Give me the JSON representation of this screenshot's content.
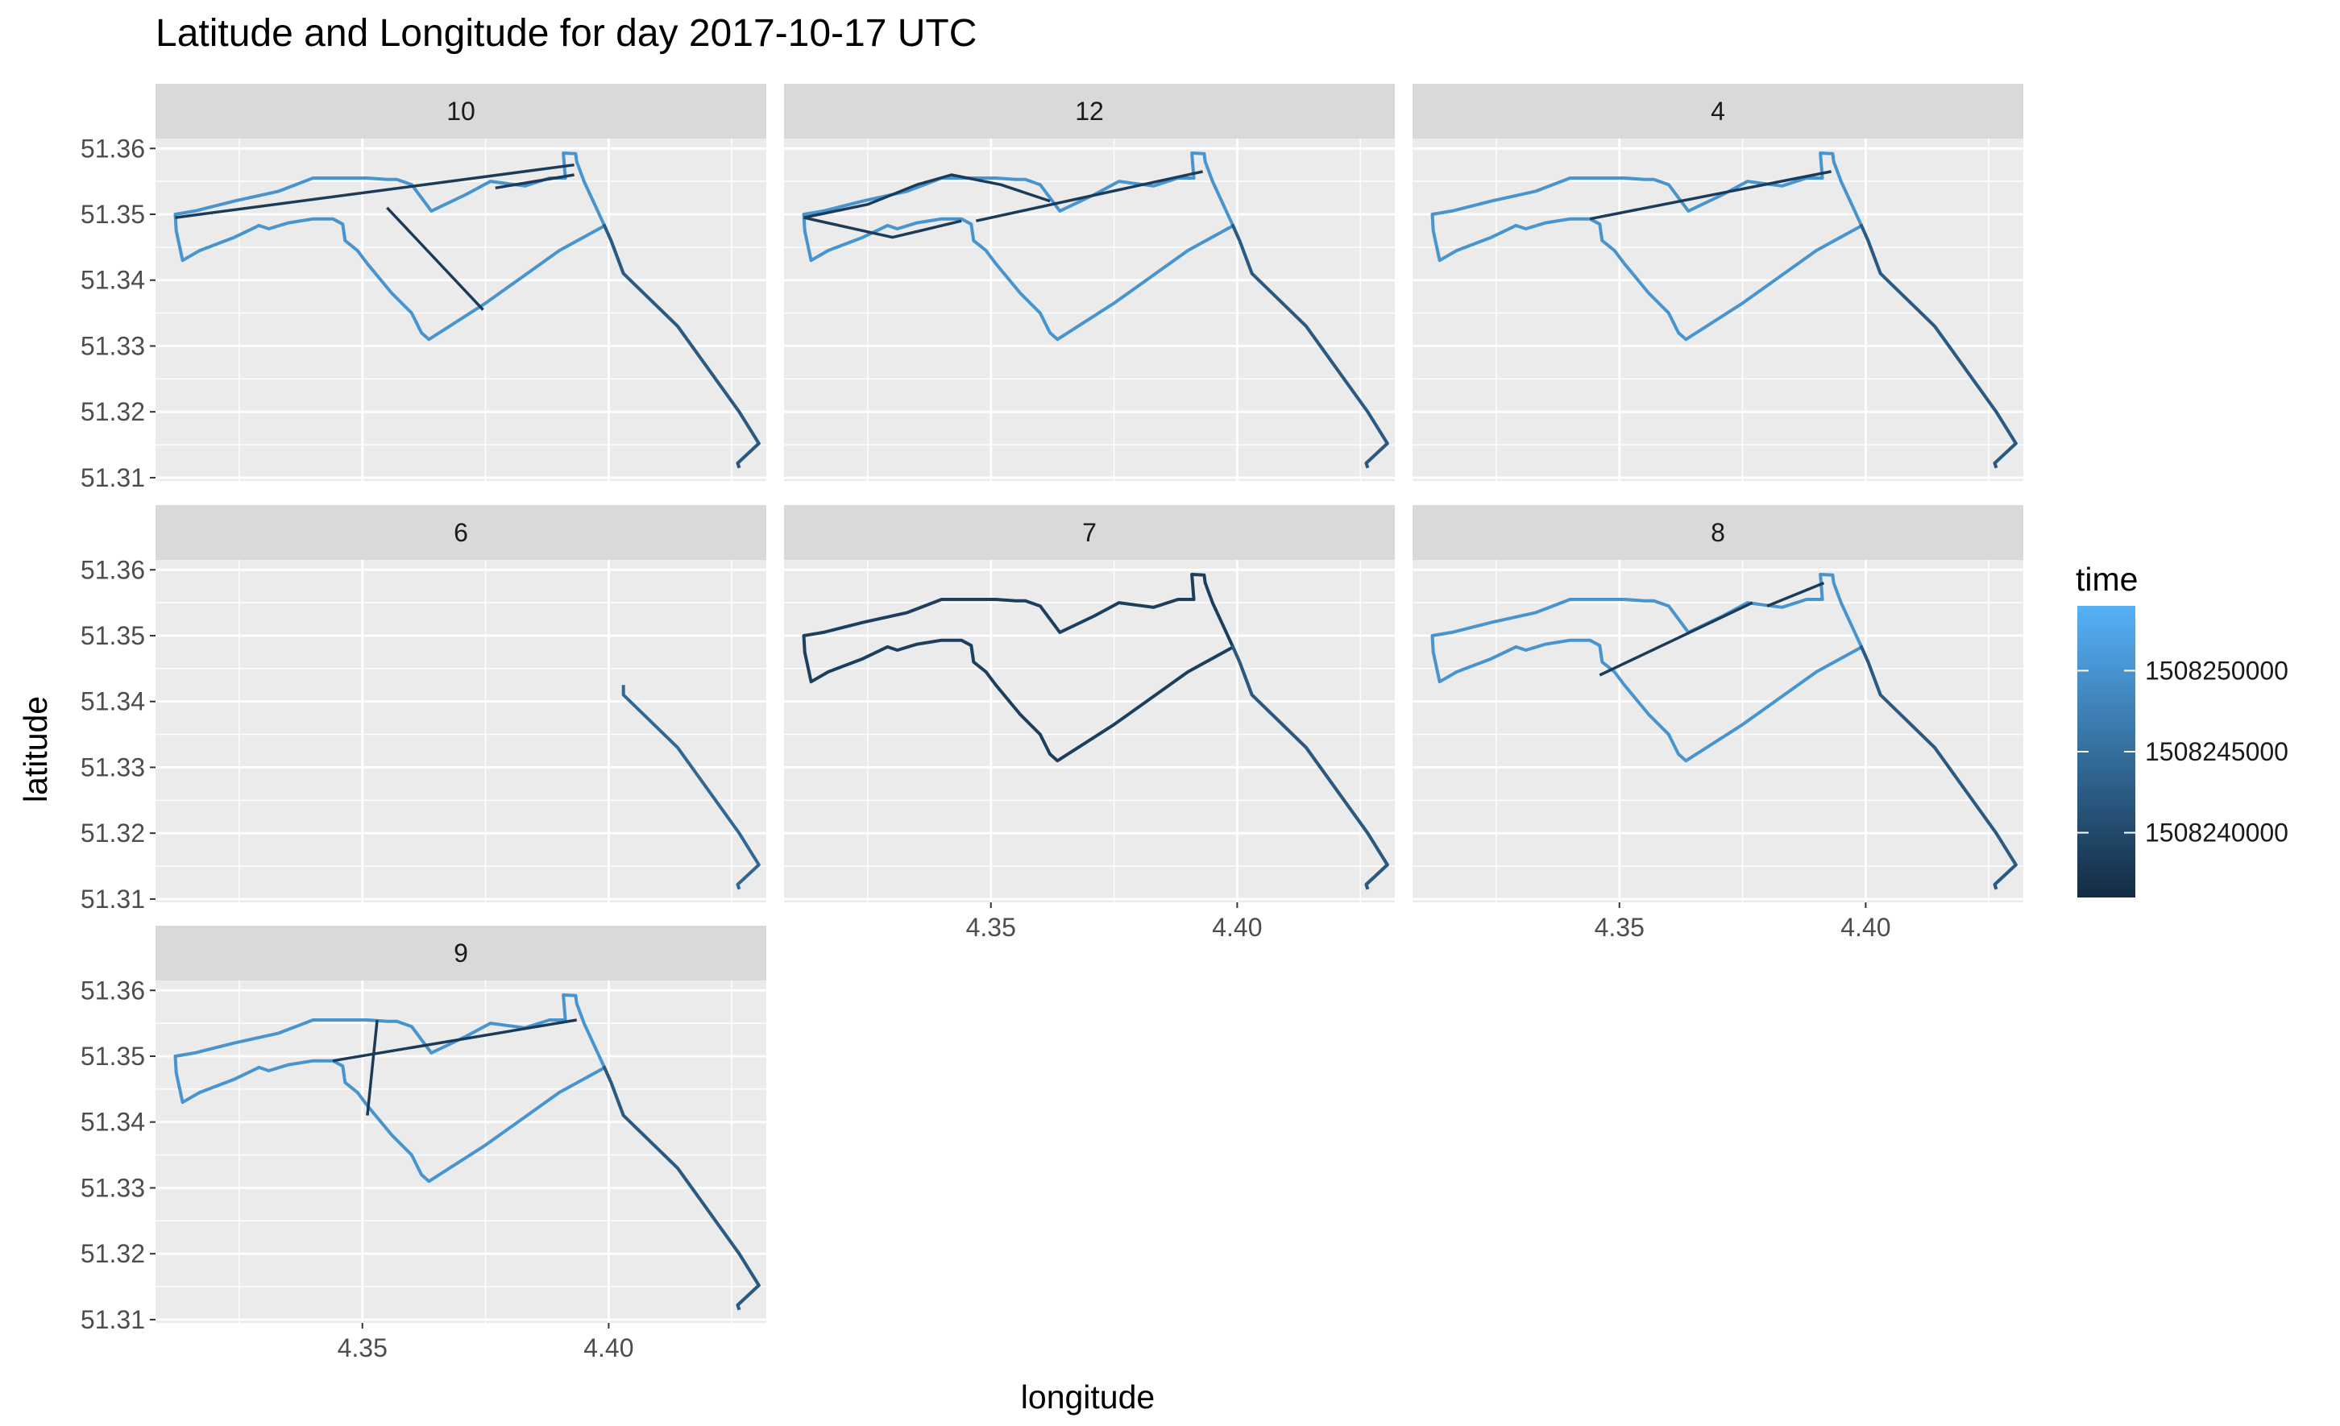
{
  "chart_data": {
    "type": "line",
    "title": "Latitude and Longitude for day 2017-10-17 UTC",
    "xlabel": "longitude",
    "ylabel": "latitude",
    "xlim": [
      4.308,
      4.432
    ],
    "ylim": [
      51.3095,
      51.3615
    ],
    "x_ticks": [
      4.35,
      4.4
    ],
    "x_tick_labels": [
      "4.35",
      "4.40"
    ],
    "y_ticks": [
      51.31,
      51.32,
      51.33,
      51.34,
      51.35,
      51.36
    ],
    "y_tick_labels": [
      "51.31",
      "51.32",
      "51.33",
      "51.34",
      "51.35",
      "51.36"
    ],
    "grid": true,
    "facet_variable_values": [
      "10",
      "12",
      "4",
      "6",
      "7",
      "8",
      "9"
    ],
    "legend": {
      "title": "time",
      "position": "right",
      "range": [
        1508236000,
        1508254000
      ],
      "breaks": [
        1508240000,
        1508245000,
        1508250000
      ],
      "break_labels": [
        "1508240000",
        "1508245000",
        "1508250000"
      ],
      "color_low": "#132B43",
      "color_high": "#56B1F7"
    },
    "base_route": [
      [
        4.4265,
        51.3115
      ],
      [
        4.4262,
        51.3122
      ],
      [
        4.4305,
        51.3152
      ],
      [
        4.4265,
        51.32
      ],
      [
        4.414,
        51.333
      ],
      [
        4.403,
        51.341
      ],
      [
        4.4005,
        51.346
      ],
      [
        4.399,
        51.3485
      ],
      [
        4.395,
        51.355
      ],
      [
        4.3935,
        51.358
      ],
      [
        4.3933,
        51.3592
      ],
      [
        4.3908,
        51.3593
      ],
      [
        4.3912,
        51.3555
      ],
      [
        4.388,
        51.3555
      ],
      [
        4.383,
        51.3543
      ],
      [
        4.376,
        51.355
      ],
      [
        4.371,
        51.353
      ],
      [
        4.364,
        51.3505
      ],
      [
        4.36,
        51.3545
      ],
      [
        4.357,
        51.3553
      ],
      [
        4.355,
        51.3553
      ],
      [
        4.351,
        51.3555
      ],
      [
        4.346,
        51.3555
      ],
      [
        4.34,
        51.3555
      ],
      [
        4.333,
        51.3535
      ],
      [
        4.324,
        51.352
      ],
      [
        4.316,
        51.3505
      ],
      [
        4.312,
        51.35
      ],
      [
        4.3122,
        51.3475
      ],
      [
        4.3135,
        51.343
      ],
      [
        4.317,
        51.3445
      ],
      [
        4.324,
        51.3465
      ],
      [
        4.329,
        51.3483
      ],
      [
        4.331,
        51.3478
      ],
      [
        4.335,
        51.3487
      ],
      [
        4.34,
        51.3493
      ],
      [
        4.344,
        51.3493
      ],
      [
        4.346,
        51.3485
      ],
      [
        4.3465,
        51.346
      ],
      [
        4.349,
        51.3445
      ],
      [
        4.351,
        51.3425
      ],
      [
        4.356,
        51.338
      ],
      [
        4.36,
        51.335
      ],
      [
        4.362,
        51.332
      ],
      [
        4.3635,
        51.331
      ],
      [
        4.375,
        51.3365
      ],
      [
        4.39,
        51.3445
      ],
      [
        4.399,
        51.3482
      ]
    ],
    "series": [
      {
        "name": "10",
        "extra_segments": [
          [
            [
              4.312,
              51.3495
            ],
            [
              4.393,
              51.3575
            ]
          ],
          [
            [
              4.355,
              51.351
            ],
            [
              4.3745,
              51.3355
            ]
          ],
          [
            [
              4.377,
              51.354
            ],
            [
              4.393,
              51.356
            ]
          ]
        ]
      },
      {
        "name": "12",
        "extra_segments": [
          [
            [
              4.312,
              51.3495
            ],
            [
              4.33,
              51.3465
            ],
            [
              4.344,
              51.349
            ]
          ],
          [
            [
              4.312,
              51.3495
            ],
            [
              4.325,
              51.3515
            ],
            [
              4.335,
              51.3545
            ],
            [
              4.342,
              51.356
            ],
            [
              4.352,
              51.3545
            ],
            [
              4.362,
              51.352
            ]
          ],
          [
            [
              4.347,
              51.349
            ],
            [
              4.393,
              51.3565
            ]
          ]
        ]
      },
      {
        "name": "4",
        "extra_segments": [
          [
            [
              4.344,
              51.3493
            ],
            [
              4.393,
              51.3565
            ]
          ]
        ]
      },
      {
        "name": "6",
        "partial": [
          4.403,
          51.3425
        ]
      },
      {
        "name": "7",
        "extra_segments": []
      },
      {
        "name": "8",
        "extra_segments": [
          [
            [
              4.346,
              51.344
            ],
            [
              4.377,
              51.355
            ]
          ],
          [
            [
              4.38,
              51.3545
            ],
            [
              4.3915,
              51.358
            ]
          ]
        ]
      },
      {
        "name": "9",
        "extra_segments": [
          [
            [
              4.344,
              51.3493
            ],
            [
              4.3935,
              51.3555
            ]
          ],
          [
            [
              4.353,
              51.3555
            ],
            [
              4.351,
              51.341
            ]
          ]
        ]
      }
    ]
  }
}
